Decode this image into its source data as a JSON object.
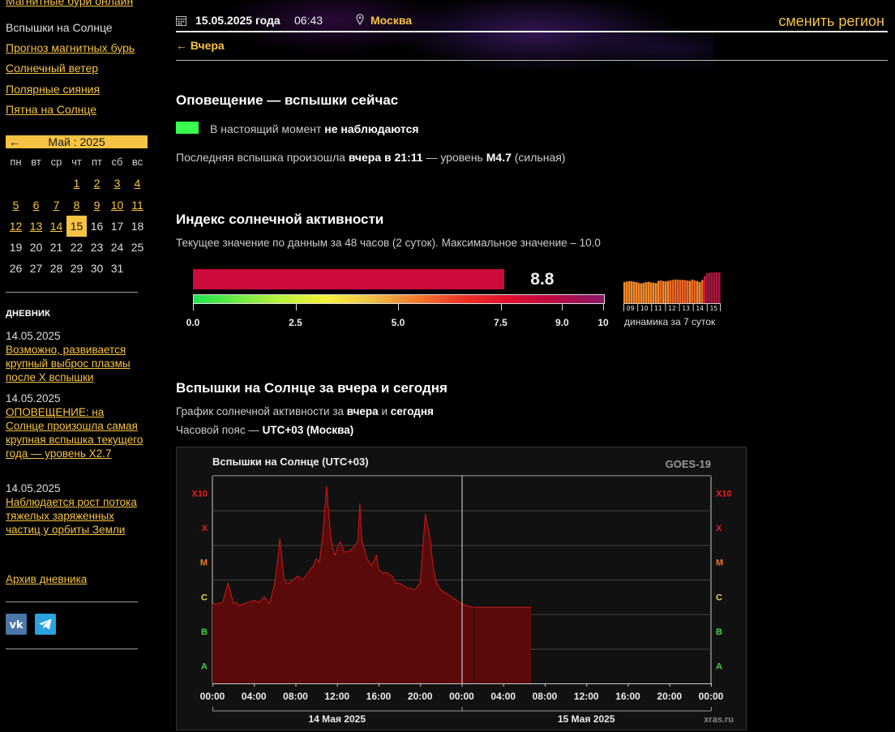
{
  "sidebar": {
    "nav": [
      {
        "label": "Магнитные бури онлайн",
        "active": false
      },
      {
        "label": "Вспышки на Солнце",
        "active": true
      },
      {
        "label": "Прогноз магнитных бурь",
        "active": false
      },
      {
        "label": "Солнечный ветер",
        "active": false
      },
      {
        "label": "Полярные сияния",
        "active": false
      },
      {
        "label": "Пятна на Солнце",
        "active": false
      }
    ],
    "calendar": {
      "prev": "←",
      "title": "Май : 2025",
      "weekdays": [
        "пн",
        "вт",
        "ср",
        "чт",
        "пт",
        "сб",
        "вс"
      ],
      "days": [
        [
          "",
          "",
          "",
          "1",
          "2",
          "3",
          "4"
        ],
        [
          "5",
          "6",
          "7",
          "8",
          "9",
          "10",
          "11"
        ],
        [
          "12",
          "13",
          "14",
          "15",
          "16",
          "17",
          "18"
        ],
        [
          "19",
          "20",
          "21",
          "22",
          "23",
          "24",
          "25"
        ],
        [
          "26",
          "27",
          "28",
          "29",
          "30",
          "31",
          ""
        ]
      ],
      "linked_days": [
        "1",
        "2",
        "3",
        "4",
        "5",
        "6",
        "7",
        "8",
        "9",
        "10",
        "11",
        "12",
        "13",
        "14"
      ],
      "today": "15"
    },
    "diary_title": "ДНЕВНИК",
    "diary": [
      {
        "date": "14.05.2025",
        "text": "Возможно, развивается крупный выброс плазмы после X вспышки"
      },
      {
        "date": "14.05.2025",
        "text": "ОПОВЕЩЕНИЕ: на Солнце произошла самая крупная вспышка текущего года — уровень X2.7"
      },
      {
        "date": "14.05.2025",
        "text": "Наблюдается рост потока тяжелых заряженных частиц у орбиты Земли"
      }
    ],
    "archive": "Архив дневника",
    "social": [
      {
        "icon": "vk-icon",
        "color": "#4a76a8"
      },
      {
        "icon": "telegram-icon",
        "color": "#2aa3df"
      }
    ]
  },
  "header": {
    "date": "15.05.2025 года",
    "time": "06:43",
    "city": "Москва",
    "change_region": "сменить регион",
    "yesterday": "← Вчера"
  },
  "alert": {
    "title": "Оповещение — вспышки сейчас",
    "status_prefix": "В настоящий момент",
    "status_value": "не наблюдаются",
    "status_color": "#39ff4d",
    "last_prefix": "Последняя вспышка произошла",
    "last_when": "вчера в 21:11",
    "last_mid": "— уровень",
    "last_level": "M4.7",
    "last_suffix": "(сильная)"
  },
  "index": {
    "title": "Индекс солнечной активности",
    "description": "Текущее значение по данным за 48 часов (2 суток). Максимальное значение – 10.0",
    "value": 8.8,
    "value_text": "8.8",
    "max": 10,
    "scale_labels": [
      "0.0",
      "2.5",
      "5.0",
      "7.5",
      "9.0",
      "10"
    ],
    "scale_values": [
      0,
      2.5,
      5,
      7.5,
      9,
      10
    ],
    "trend": {
      "days": [
        "09",
        "10",
        "11",
        "12",
        "13",
        "14",
        "15"
      ],
      "values": [
        6.5,
        6.7,
        6.8,
        6.8,
        6.6,
        6.5,
        6.2,
        6.1,
        6.3,
        6.5,
        6.6,
        6.4,
        6.3,
        6.2,
        6.9,
        7.0,
        6.8,
        6.7,
        6.9,
        7.1,
        7.2,
        7.3,
        7.3,
        7.2,
        7.2,
        7.1,
        7.0,
        6.9,
        7.3,
        7.0,
        6.8,
        6.5,
        7.2,
        8.3,
        9.3,
        9.4,
        9.5,
        9.4,
        9.6,
        9.5
      ],
      "caption": "динамика за 7 суток"
    }
  },
  "flares": {
    "title": "Вспышки на Солнце за вчера и сегодня",
    "desc_prefix": "График солнечной активности за",
    "desc_b1": "вчера",
    "desc_mid": "и",
    "desc_b2": "сегодня",
    "tz_prefix": "Часовой пояс —",
    "tz_value": "UTC+03 (Москва)"
  },
  "chart_data": {
    "type": "area",
    "title": "Вспышки на Солнце (UTC+03)",
    "source": "GOES-19",
    "watermark": "xras.ru",
    "y_levels": [
      "A",
      "B",
      "C",
      "M",
      "X",
      "X10"
    ],
    "y_level_colors": [
      "#3fd43f",
      "#3fd43f",
      "#e7d94a",
      "#ee7a2c",
      "#e81e1e",
      "#e81e1e"
    ],
    "ylim": [
      0,
      6
    ],
    "x_ticks": [
      "00:00",
      "04:00",
      "08:00",
      "12:00",
      "16:00",
      "20:00",
      "00:00",
      "04:00",
      "08:00",
      "12:00",
      "16:00",
      "20:00",
      "00:00"
    ],
    "x_days": [
      "14 Мая 2025",
      "15 Мая 2025"
    ],
    "xlim_hours": [
      0,
      48
    ],
    "series": [
      {
        "x_hours": [
          0,
          0.5,
          1,
          1.5,
          1.8,
          2,
          2.3,
          2.6,
          3,
          3.5,
          4,
          4.5,
          5,
          5.5,
          6,
          6.3,
          6.5,
          6.7,
          6.9,
          7.1,
          7.4,
          7.8,
          8.2,
          8.7,
          9.2,
          9.7,
          10,
          10.3,
          10.6,
          11,
          11.2,
          11.4,
          11.6,
          11.8,
          12,
          12.3,
          12.7,
          13,
          13.5,
          14,
          14.2,
          14.4,
          14.6,
          14.9,
          15.3,
          15.8,
          16,
          16.4,
          16.8,
          17.3,
          17.6,
          18,
          18.5,
          19,
          19.5,
          20,
          20.5,
          21,
          21.2,
          21.4,
          21.6,
          22,
          22.5,
          23,
          23.5,
          24,
          24.5,
          25,
          25.5,
          26,
          26.5,
          27,
          27.5,
          28,
          28.5,
          29,
          29.5,
          30,
          30.5,
          31,
          31.5,
          32,
          32.5,
          33,
          33.5,
          34,
          34.5,
          35,
          35.5,
          36,
          36.5,
          37,
          37.5,
          38,
          38.5,
          39,
          39.5,
          40,
          40.5,
          41,
          41.5,
          42,
          42.5,
          43,
          43.5,
          44,
          44.5,
          45,
          45.5,
          46,
          46.5,
          47,
          47.5,
          48
        ],
        "level": [
          2.3,
          2.3,
          2.35,
          2.9,
          2.6,
          2.3,
          2.35,
          2.25,
          2.3,
          2.35,
          2.4,
          2.35,
          2.5,
          2.3,
          2.9,
          3.6,
          4.2,
          3.6,
          3.0,
          2.9,
          2.9,
          3.0,
          3.1,
          3.0,
          3.2,
          3.4,
          3.6,
          3.5,
          4.2,
          5.7,
          4.9,
          4.2,
          3.9,
          3.7,
          3.9,
          4.1,
          3.8,
          3.8,
          3.9,
          4.1,
          5.2,
          4.1,
          3.9,
          3.6,
          3.4,
          3.7,
          3.3,
          3.2,
          3.2,
          3.1,
          2.9,
          2.9,
          2.8,
          2.75,
          2.7,
          2.9,
          4.9,
          4.1,
          3.5,
          3.1,
          2.9,
          2.7,
          2.6,
          2.5,
          2.4,
          2.3,
          2.25,
          2.2,
          2.2,
          2.2,
          2.2,
          2.2,
          2.2,
          2.2,
          2.2,
          2.2,
          2.2,
          2.2,
          2.2,
          2.2,
          2.2,
          2.2,
          2.2,
          2.2,
          2.2,
          2.2,
          2.2,
          2.2,
          2.2,
          2.2,
          2.2,
          2.2,
          2.2,
          2.2,
          2.2,
          2.2,
          2.2,
          2.2,
          2.2,
          2.2,
          2.2,
          2.2,
          2.2,
          2.2,
          2.2,
          2.2,
          2.2,
          2.2,
          2.2,
          2.2,
          2.2,
          2.2,
          2.2,
          2.2
        ],
        "end_hour": 30.7
      }
    ]
  }
}
